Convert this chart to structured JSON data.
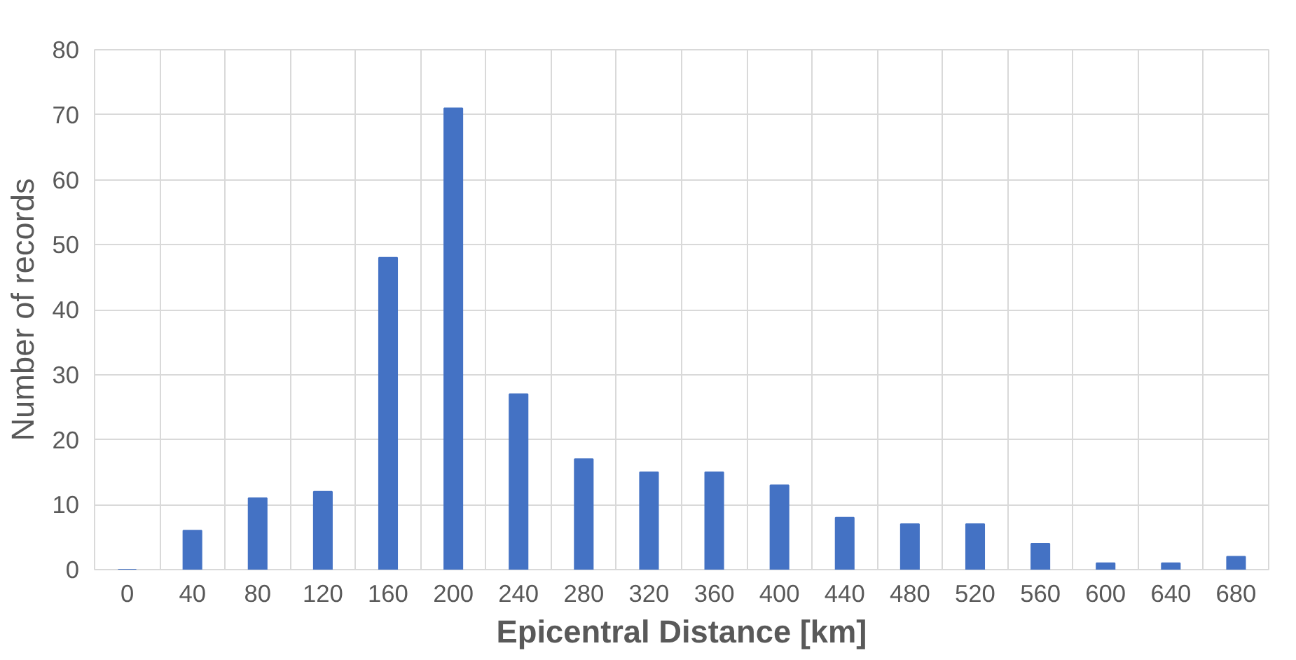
{
  "chart_data": {
    "type": "bar",
    "xlabel": "Epicentral Distance [km]",
    "ylabel": "Number of records",
    "categories": [
      "0",
      "40",
      "80",
      "120",
      "160",
      "200",
      "240",
      "280",
      "320",
      "360",
      "400",
      "440",
      "480",
      "520",
      "560",
      "600",
      "640",
      "680"
    ],
    "values": [
      0,
      6,
      11,
      12,
      48,
      71,
      27,
      17,
      15,
      15,
      13,
      8,
      7,
      7,
      4,
      1,
      1,
      2
    ],
    "color": "#4472c4",
    "ylim": [
      0,
      80
    ],
    "yticks": [
      0,
      10,
      20,
      30,
      40,
      50,
      60,
      70,
      80
    ],
    "grid": true
  }
}
